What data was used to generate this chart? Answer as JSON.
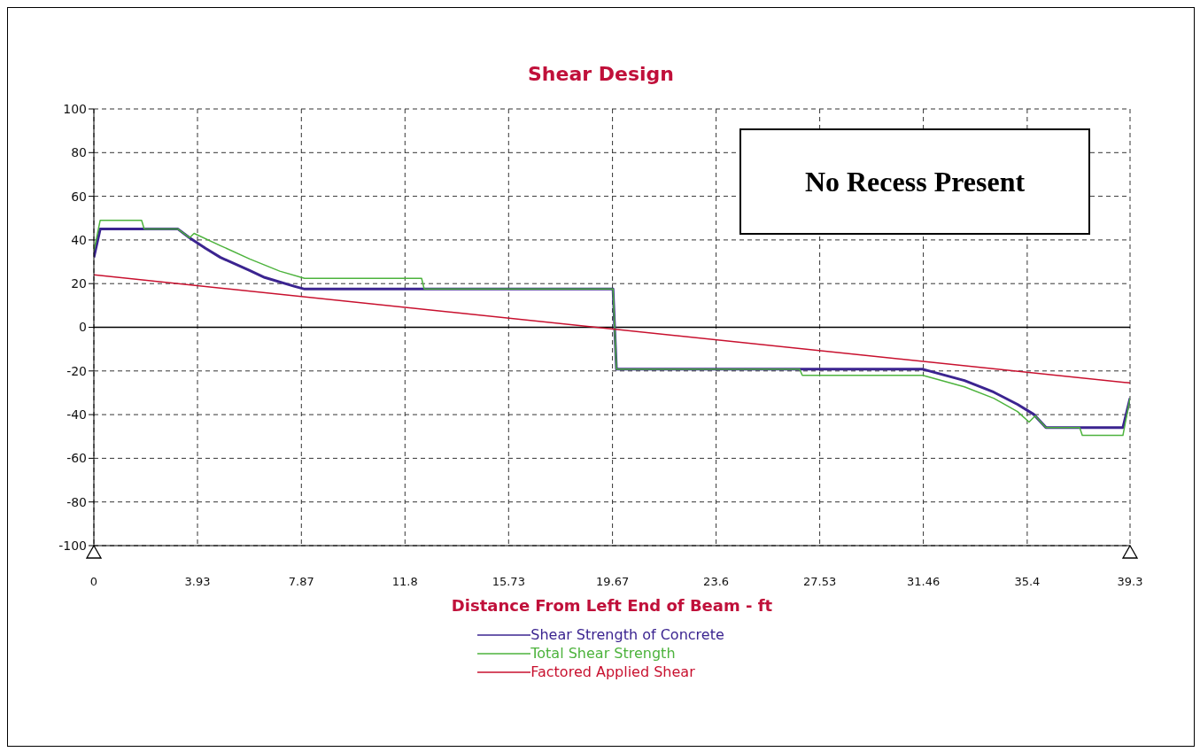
{
  "chart_data": {
    "type": "line",
    "title": "Shear Design",
    "xlabel": "Distance From Left End of Beam - ft",
    "xlim": [
      0,
      39.3
    ],
    "xticks": [
      0,
      3.93,
      7.87,
      11.8,
      15.73,
      19.67,
      23.6,
      27.53,
      31.46,
      35.4,
      39.3
    ],
    "ylim": [
      -100,
      100
    ],
    "yticks": [
      -100,
      -80,
      -60,
      -40,
      -20,
      0,
      20,
      40,
      60,
      80,
      100
    ],
    "grid": true,
    "legend": "bottom",
    "ref_lines": [
      {
        "axis": "y",
        "value": 0,
        "color": "#000000"
      }
    ],
    "annotations": [
      "No Recess Present"
    ],
    "series": [
      {
        "name": "Shear Strength of Concrete",
        "color": "#3b2490",
        "x": [
          0,
          0.24,
          1.91,
          3.19,
          3.63,
          4.23,
          4.8,
          5.91,
          6.48,
          7.59,
          7.99,
          12.53,
          19.69,
          19.82,
          31.44,
          33.02,
          34.13,
          35.03,
          35.64,
          36.11,
          39.03,
          39.3
        ],
        "values": [
          32,
          45,
          45,
          45,
          41,
          36.2,
          32,
          26,
          22.8,
          18.8,
          17.5,
          17.5,
          17.5,
          -19.2,
          -19.2,
          -24.4,
          -29.7,
          -35.3,
          -39.8,
          -45.9,
          -45.9,
          -32.5
        ]
      },
      {
        "name": "Total Shear Strength",
        "color": "#4db33d",
        "x": [
          0,
          0.24,
          1.81,
          1.91,
          3.19,
          3.63,
          3.8,
          4.8,
          5.91,
          7.05,
          7.99,
          12.43,
          12.53,
          19.69,
          19.82,
          26.77,
          26.87,
          31.44,
          33.02,
          34.13,
          35.03,
          35.47,
          35.7,
          36.11,
          37.39,
          37.49,
          39.03,
          39.3
        ],
        "values": [
          35,
          49,
          49,
          45,
          45,
          41,
          43,
          37.4,
          31.3,
          25.7,
          22.4,
          22.4,
          17.5,
          17.5,
          -19.2,
          -19.2,
          -22,
          -22,
          -27.3,
          -32.5,
          -38.6,
          -43.4,
          -40.6,
          -45.9,
          -45.9,
          -49.5,
          -49.5,
          -32.5
        ]
      },
      {
        "name": "Factored Applied Shear",
        "color": "#c8102e",
        "x": [
          0,
          39.3
        ],
        "values": [
          24,
          -25.5
        ]
      }
    ]
  }
}
